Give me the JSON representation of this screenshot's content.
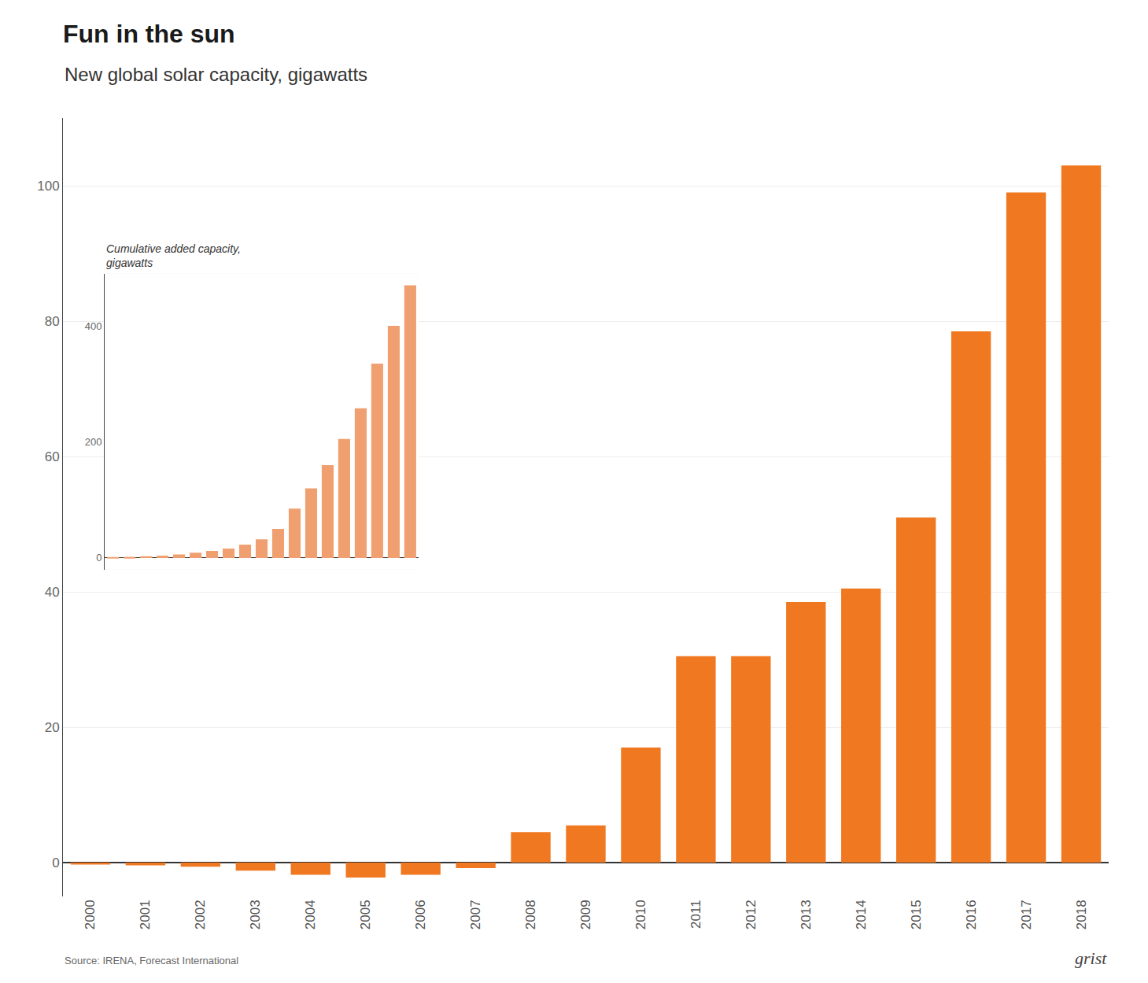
{
  "chart_data": [
    {
      "type": "bar",
      "title": "Fun in the sun",
      "subtitle": "New global solar capacity, gigawatts",
      "annotations": [
        "Source: IRENA, Forecast International",
        "grist"
      ],
      "categories": [
        "2000",
        "2001",
        "2002",
        "2003",
        "2004",
        "2005",
        "2006",
        "2007",
        "2008",
        "2009",
        "2010",
        "2011",
        "2012",
        "2013",
        "2014",
        "2015",
        "2016",
        "2017",
        "2018"
      ],
      "values": [
        -0.3,
        -0.4,
        -0.6,
        -1.2,
        -1.8,
        -2.2,
        -1.8,
        -0.8,
        4.5,
        5.5,
        17.0,
        30.5,
        30.5,
        38.5,
        40.5,
        51.0,
        78.5,
        99.0,
        103.0
      ],
      "color": "#F07820",
      "ylim": [
        -5,
        110
      ],
      "yticks": [
        0,
        20,
        40,
        60,
        80,
        100
      ],
      "grid": true
    },
    {
      "type": "bar",
      "title": "Cumulative added capacity,\ngigawatts",
      "categories": [
        "2000",
        "2001",
        "2002",
        "2003",
        "2004",
        "2005",
        "2006",
        "2007",
        "2008",
        "2009",
        "2010",
        "2011",
        "2012",
        "2013",
        "2014",
        "2015",
        "2016",
        "2017",
        "2018"
      ],
      "values": [
        1,
        2,
        3,
        4,
        6,
        9,
        12,
        16,
        23,
        32,
        50,
        85,
        120,
        160,
        205,
        258,
        335,
        400,
        470
      ],
      "color": "#F0A070",
      "ylim": [
        -20,
        490
      ],
      "yticks": [
        0,
        200,
        400
      ],
      "grid": true,
      "tick_labels": "y"
    }
  ]
}
